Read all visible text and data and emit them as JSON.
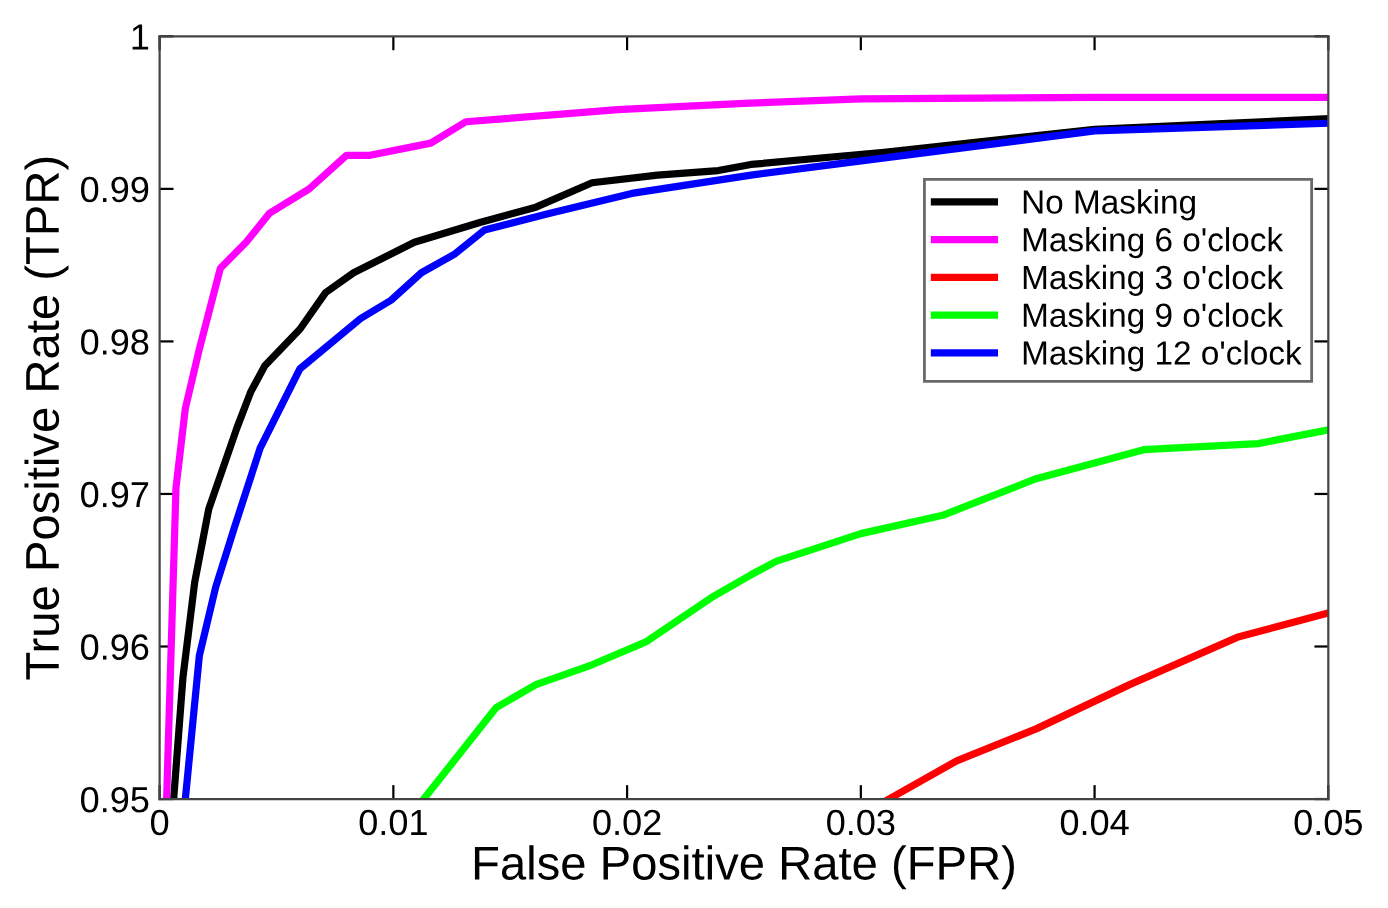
{
  "chart_data": {
    "type": "line",
    "xlabel": "False Positive Rate (FPR)",
    "ylabel": "True Positive Rate (TPR)",
    "xlim": [
      0,
      0.05
    ],
    "ylim": [
      0.95,
      1
    ],
    "xticks": [
      0,
      0.01,
      0.02,
      0.03,
      0.04,
      0.05
    ],
    "yticks": [
      0.95,
      0.96,
      0.97,
      0.98,
      0.99,
      1
    ],
    "grid": false,
    "legend": "right",
    "marker": "none",
    "line_style": "solid",
    "series": [
      {
        "name": "No Masking",
        "color": "#000000",
        "x": [
          0.0006,
          0.001,
          0.0015,
          0.0021,
          0.0033,
          0.0039,
          0.0045,
          0.006,
          0.0071,
          0.0083,
          0.0109,
          0.0137,
          0.0161,
          0.0185,
          0.0213,
          0.0239,
          0.0253,
          0.031,
          0.04,
          0.05
        ],
        "values": [
          0.95,
          0.958,
          0.9642,
          0.969,
          0.9743,
          0.9767,
          0.9784,
          0.9808,
          0.9832,
          0.9845,
          0.9865,
          0.9878,
          0.9888,
          0.9904,
          0.9909,
          0.9912,
          0.9916,
          0.9924,
          0.9939,
          0.9946
        ]
      },
      {
        "name": "Masking 6 o'clock",
        "color": "#ff00ff",
        "x": [
          0.0003,
          0.0007,
          0.0011,
          0.0017,
          0.0026,
          0.0037,
          0.0047,
          0.0064,
          0.008,
          0.009,
          0.0116,
          0.0131,
          0.0148,
          0.0196,
          0.025,
          0.03,
          0.04,
          0.05
        ],
        "values": [
          0.95,
          0.9704,
          0.9756,
          0.9795,
          0.9848,
          0.9865,
          0.9884,
          0.99,
          0.9922,
          0.9922,
          0.993,
          0.9944,
          0.9946,
          0.9952,
          0.9956,
          0.9959,
          0.996,
          0.996
        ]
      },
      {
        "name": "Masking 3 o'clock",
        "color": "#ff0000",
        "x": [
          0.0312,
          0.0341,
          0.0375,
          0.0415,
          0.0461,
          0.05
        ],
        "values": [
          0.95,
          0.9525,
          0.9546,
          0.9575,
          0.9606,
          0.9622
        ]
      },
      {
        "name": "Masking 9 o'clock",
        "color": "#00ff00",
        "x": [
          0.0113,
          0.0144,
          0.0161,
          0.0185,
          0.0208,
          0.0236,
          0.0253,
          0.0264,
          0.03,
          0.0335,
          0.0375,
          0.0421,
          0.047,
          0.05
        ],
        "values": [
          0.95,
          0.956,
          0.9575,
          0.9588,
          0.9603,
          0.9632,
          0.9647,
          0.9656,
          0.9674,
          0.9686,
          0.971,
          0.9729,
          0.9733,
          0.9742
        ]
      },
      {
        "name": "Masking 12 o'clock",
        "color": "#0000ff",
        "x": [
          0.0011,
          0.0017,
          0.0024,
          0.0032,
          0.0043,
          0.006,
          0.0086,
          0.0099,
          0.0112,
          0.0126,
          0.0139,
          0.0167,
          0.0202,
          0.0253,
          0.04,
          0.05
        ],
        "values": [
          0.95,
          0.9594,
          0.9639,
          0.9678,
          0.973,
          0.9782,
          0.9815,
          0.9827,
          0.9845,
          0.9857,
          0.9873,
          0.9884,
          0.9897,
          0.9909,
          0.9938,
          0.9943
        ]
      }
    ]
  }
}
